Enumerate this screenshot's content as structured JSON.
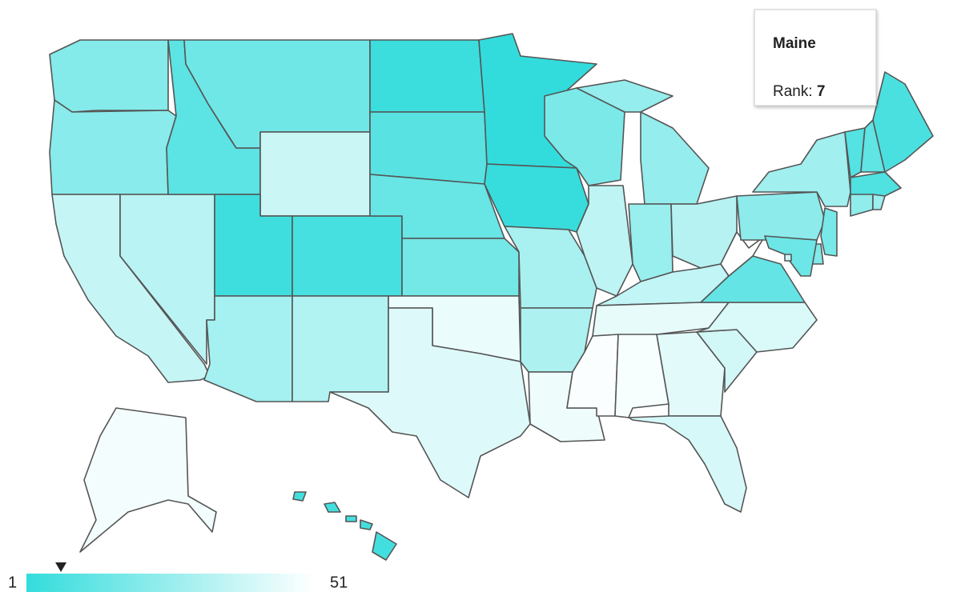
{
  "chart_data": {
    "type": "choropleth",
    "ranks": [
      21,
      22,
      37,
      34,
      11,
      16,
      38,
      4,
      6,
      29,
      32,
      3,
      10,
      14,
      17,
      46,
      43,
      1,
      2,
      30,
      31,
      47,
      19,
      35,
      25,
      26,
      33,
      36,
      45,
      50,
      49,
      44,
      41,
      40,
      42,
      13,
      51,
      23,
      28,
      9,
      12,
      7,
      8,
      24,
      27,
      18,
      20,
      15,
      39,
      48,
      5
    ],
    "colors": [
      "#33dcdc",
      "#ffffff"
    ],
    "colorbar": {
      "min": 1,
      "max": 51
    },
    "tooltip": {
      "title": "Maine",
      "label": "Rank:",
      "value": 7
    }
  }
}
